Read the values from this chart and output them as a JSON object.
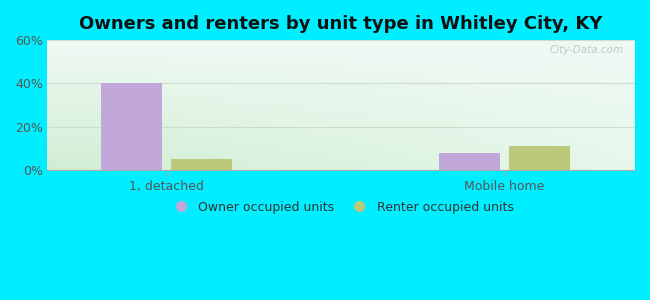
{
  "title": "Owners and renters by unit type in Whitley City, KY",
  "categories": [
    "1, detached",
    "Mobile home"
  ],
  "owner_values": [
    40.0,
    8.0
  ],
  "renter_values": [
    5.0,
    11.0
  ],
  "owner_color": "#c2a8d8",
  "renter_color": "#bcc87a",
  "ylim": [
    0,
    60
  ],
  "yticks": [
    0,
    20,
    40,
    60
  ],
  "ytick_labels": [
    "0%",
    "20%",
    "40%",
    "60%"
  ],
  "background_outer": "#00eeff",
  "legend_labels": [
    "Owner occupied units",
    "Renter occupied units"
  ],
  "bar_width": 0.28,
  "watermark": "City-Data.com",
  "title_fontsize": 13,
  "axis_fontsize": 9,
  "x_positions": [
    0.55,
    2.1
  ],
  "xlim": [
    0.0,
    2.7
  ]
}
